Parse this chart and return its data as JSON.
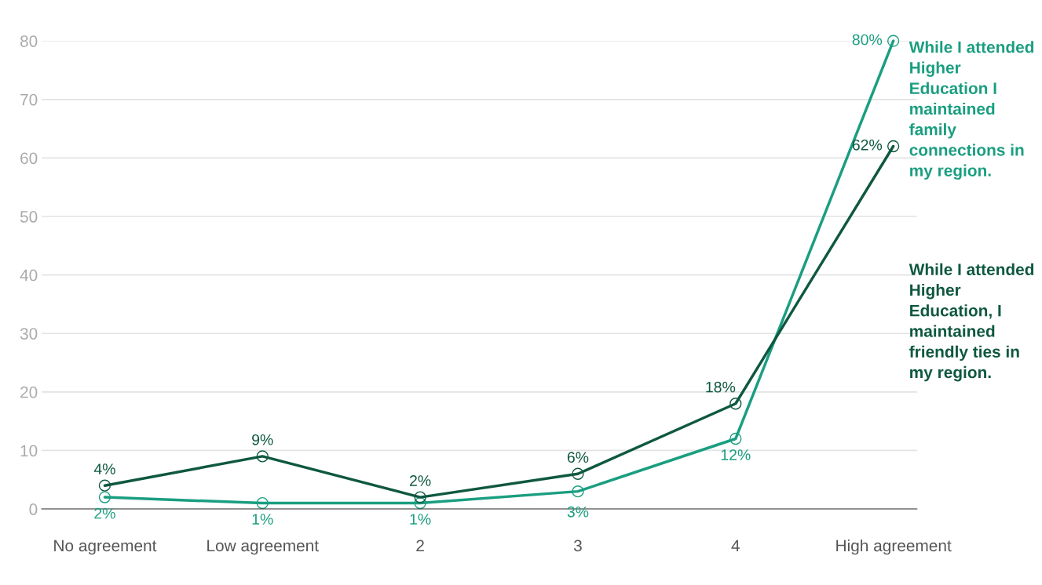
{
  "chart_data": {
    "type": "line",
    "categories": [
      "No agreement",
      "Low agreement",
      "2",
      "3",
      "4",
      "High agreement"
    ],
    "series": [
      {
        "name": "While I attended Higher Education I maintained family connections in my region.",
        "color": "#1a9e80",
        "values": [
          2,
          1,
          1,
          3,
          12,
          80
        ],
        "value_labels": [
          "2%",
          "1%",
          "1%",
          "3%",
          "12%",
          "80%"
        ]
      },
      {
        "name": "While I attended Higher Education, I maintained friendly ties in my region.",
        "color": "#0f5840",
        "values": [
          4,
          9,
          2,
          6,
          18,
          62
        ],
        "value_labels": [
          "4%",
          "9%",
          "2%",
          "6%",
          "18%",
          "62%"
        ]
      }
    ],
    "ylim": [
      0,
      80
    ],
    "yticks": [
      0,
      10,
      20,
      30,
      40,
      50,
      60,
      70,
      80
    ],
    "grid": "y",
    "marker": "circle",
    "line_style": "solid",
    "legend": false
  }
}
